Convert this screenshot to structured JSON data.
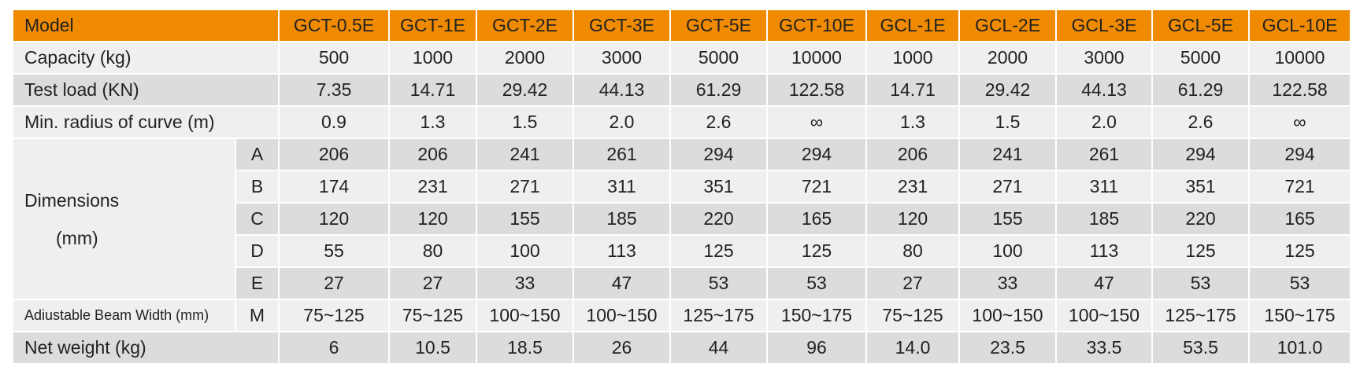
{
  "header": {
    "label": "Model",
    "models": [
      "GCT-0.5E",
      "GCT-1E",
      "GCT-2E",
      "GCT-3E",
      "GCT-5E",
      "GCT-10E",
      "GCL-1E",
      "GCL-2E",
      "GCL-3E",
      "GCL-5E",
      "GCL-10E"
    ]
  },
  "rows": [
    {
      "label": "Capacity (kg)",
      "values": [
        "500",
        "1000",
        "2000",
        "3000",
        "5000",
        "10000",
        "1000",
        "2000",
        "3000",
        "5000",
        "10000"
      ]
    },
    {
      "label": "Test load (KN)",
      "values": [
        "7.35",
        "14.71",
        "29.42",
        "44.13",
        "61.29",
        "122.58",
        "14.71",
        "29.42",
        "44.13",
        "61.29",
        "122.58"
      ]
    },
    {
      "label": "Min. radius of curve (m)",
      "values": [
        "0.9",
        "1.3",
        "1.5",
        "2.0",
        "2.6",
        "∞",
        "1.3",
        "1.5",
        "2.0",
        "2.6",
        "∞"
      ]
    }
  ],
  "dimensions": {
    "label": [
      "Dimensions",
      "(mm)"
    ],
    "rows": [
      {
        "key": "A",
        "values": [
          "206",
          "206",
          "241",
          "261",
          "294",
          "294",
          "206",
          "241",
          "261",
          "294",
          "294"
        ]
      },
      {
        "key": "B",
        "values": [
          "174",
          "231",
          "271",
          "311",
          "351",
          "721",
          "231",
          "271",
          "311",
          "351",
          "721"
        ]
      },
      {
        "key": "C",
        "values": [
          "120",
          "120",
          "155",
          "185",
          "220",
          "165",
          "120",
          "155",
          "185",
          "220",
          "165"
        ]
      },
      {
        "key": "D",
        "values": [
          "55",
          "80",
          "100",
          "113",
          "125",
          "125",
          "80",
          "100",
          "113",
          "125",
          "125"
        ]
      },
      {
        "key": "E",
        "values": [
          "27",
          "27",
          "33",
          "47",
          "53",
          "53",
          "27",
          "33",
          "47",
          "53",
          "53"
        ]
      }
    ]
  },
  "beam_width": {
    "label": "Adiustable Beam Width (mm)",
    "key": "M",
    "values": [
      "75~125",
      "75~125",
      "100~150",
      "100~150",
      "125~175",
      "150~175",
      "75~125",
      "100~150",
      "100~150",
      "125~175",
      "150~175"
    ]
  },
  "net_weight": {
    "label": "Net weight (kg)",
    "values": [
      "6",
      "10.5",
      "18.5",
      "26",
      "44",
      "96",
      "14.0",
      "23.5",
      "33.5",
      "53.5",
      "101.0"
    ]
  }
}
